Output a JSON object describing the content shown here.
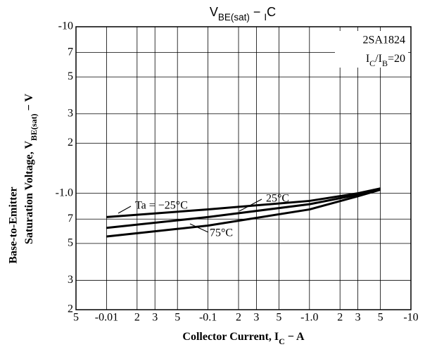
{
  "chart_data": {
    "type": "line",
    "title": [
      "V",
      "BE(sat)",
      "  −  ",
      "I",
      "C"
    ],
    "x_label": [
      "Collector Current, I",
      "C",
      " − A"
    ],
    "y_label": [
      "Base-to-Emitter",
      [
        "Saturation Voltage, V",
        "BE(sat)",
        " − V"
      ]
    ],
    "annotations": [
      "2SA1824",
      [
        "I",
        "C",
        "/I",
        "B",
        "=20"
      ]
    ],
    "log_x": true,
    "log_y": true,
    "grid": true,
    "xlim": [
      -0.005,
      -10
    ],
    "ylim": [
      -0.2,
      -10
    ],
    "xticks": [
      {
        "value": -0.005,
        "label": "5"
      },
      -0.01,
      {
        "value": -0.02,
        "label": "2"
      },
      {
        "value": -0.03,
        "label": "3"
      },
      {
        "value": -0.05,
        "label": "5"
      },
      -0.1,
      {
        "value": -0.2,
        "label": "2"
      },
      {
        "value": -0.3,
        "label": "3"
      },
      {
        "value": -0.5,
        "label": "5"
      },
      {
        "value": -1,
        "label": "-1.0"
      },
      {
        "value": -2,
        "label": "2"
      },
      {
        "value": -3,
        "label": "3"
      },
      {
        "value": -5,
        "label": "5"
      },
      -10
    ],
    "yticks": [
      {
        "value": -0.2,
        "label": "2"
      },
      {
        "value": -0.3,
        "label": "3"
      },
      {
        "value": -0.5,
        "label": "5"
      },
      {
        "value": -0.7,
        "label": "7"
      },
      {
        "value": -1,
        "label": "-1.0"
      },
      {
        "value": -2,
        "label": "2"
      },
      {
        "value": -3,
        "label": "3"
      },
      {
        "value": -5,
        "label": "5"
      },
      {
        "value": -7,
        "label": "7"
      },
      -10
    ],
    "x": [
      -0.01,
      -0.1,
      -1,
      -3,
      -5
    ],
    "series": [
      {
        "name": "Ta = −25°C",
        "color": "#000000",
        "values": [
          -0.72,
          -0.8,
          -0.9,
          -1.0,
          -1.07
        ]
      },
      {
        "name": "25°C",
        "color": "#000000",
        "values": [
          -0.62,
          -0.72,
          -0.86,
          -0.98,
          -1.06
        ]
      },
      {
        "name": "75°C",
        "color": "#000000",
        "values": [
          -0.55,
          -0.64,
          -0.8,
          -0.96,
          -1.05
        ]
      }
    ]
  }
}
